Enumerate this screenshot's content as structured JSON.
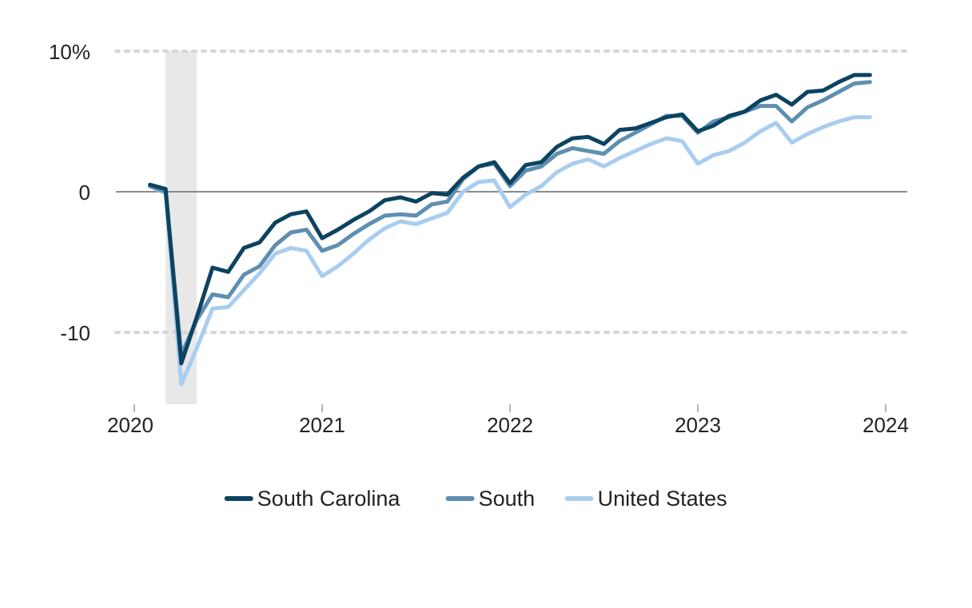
{
  "chart_data": {
    "type": "line",
    "title": "",
    "xlabel": "",
    "ylabel": "",
    "y_unit": "%",
    "ylim": [
      -15,
      10
    ],
    "xlim": [
      2020.0,
      2024.12
    ],
    "y_ticks": [
      {
        "value": 10,
        "label": "10%"
      },
      {
        "value": 0,
        "label": "0"
      },
      {
        "value": -10,
        "label": "-10"
      }
    ],
    "x_ticks": [
      {
        "value": 2020,
        "label": "2020"
      },
      {
        "value": 2021,
        "label": "2021"
      },
      {
        "value": 2022,
        "label": "2022"
      },
      {
        "value": 2023,
        "label": "2023"
      },
      {
        "value": 2024,
        "label": "2024"
      }
    ],
    "recession_band": {
      "start": 2020.167,
      "end": 2020.333,
      "color": "#e8e8e8"
    },
    "grid": "dotted at ±10, solid zero line",
    "legend_position": "bottom-center",
    "x": [
      "2020-02",
      "2020-03",
      "2020-04",
      "2020-05",
      "2020-06",
      "2020-07",
      "2020-08",
      "2020-09",
      "2020-10",
      "2020-11",
      "2020-12",
      "2021-01",
      "2021-02",
      "2021-03",
      "2021-04",
      "2021-05",
      "2021-06",
      "2021-07",
      "2021-08",
      "2021-09",
      "2021-10",
      "2021-11",
      "2021-12",
      "2022-01",
      "2022-02",
      "2022-03",
      "2022-04",
      "2022-05",
      "2022-06",
      "2022-07",
      "2022-08",
      "2022-09",
      "2022-10",
      "2022-11",
      "2022-12",
      "2023-01",
      "2023-02",
      "2023-03",
      "2023-04",
      "2023-05",
      "2023-06",
      "2023-07",
      "2023-08",
      "2023-09",
      "2023-10",
      "2023-11",
      "2023-12"
    ],
    "series": [
      {
        "name": "South Carolina",
        "color": "#0b4360",
        "values": [
          0.5,
          0.2,
          -12.2,
          -8.9,
          -5.4,
          -5.7,
          -4.0,
          -3.6,
          -2.2,
          -1.6,
          -1.4,
          -3.3,
          -2.7,
          -2.0,
          -1.4,
          -0.6,
          -0.4,
          -0.7,
          -0.1,
          -0.2,
          1.0,
          1.8,
          2.1,
          0.6,
          1.9,
          2.1,
          3.2,
          3.8,
          3.9,
          3.4,
          4.4,
          4.5,
          4.9,
          5.3,
          5.5,
          4.3,
          4.7,
          5.4,
          5.7,
          6.5,
          6.9,
          6.2,
          7.1,
          7.2,
          7.8,
          8.3,
          8.3
        ]
      },
      {
        "name": "South",
        "color": "#5e8fb1",
        "values": [
          0.4,
          0.0,
          -11.6,
          -9.1,
          -7.3,
          -7.5,
          -5.9,
          -5.3,
          -3.8,
          -2.9,
          -2.7,
          -4.2,
          -3.8,
          -3.0,
          -2.3,
          -1.7,
          -1.6,
          -1.7,
          -0.9,
          -0.7,
          0.9,
          1.8,
          2.0,
          0.4,
          1.5,
          1.8,
          2.7,
          3.1,
          2.9,
          2.7,
          3.6,
          4.2,
          4.8,
          5.4,
          5.4,
          4.2,
          5.0,
          5.3,
          5.7,
          6.1,
          6.1,
          5.0,
          6.0,
          6.5,
          7.1,
          7.7,
          7.8
        ]
      },
      {
        "name": "United States",
        "color": "#a8cdf0",
        "values": [
          0.4,
          -0.1,
          -13.7,
          -11.1,
          -8.3,
          -8.2,
          -7.0,
          -5.8,
          -4.4,
          -4.0,
          -4.2,
          -6.0,
          -5.3,
          -4.4,
          -3.4,
          -2.6,
          -2.1,
          -2.3,
          -1.9,
          -1.5,
          0.0,
          0.7,
          0.8,
          -1.1,
          -0.2,
          0.4,
          1.4,
          2.0,
          2.3,
          1.8,
          2.4,
          2.9,
          3.4,
          3.8,
          3.6,
          2.0,
          2.6,
          2.9,
          3.5,
          4.3,
          4.9,
          3.5,
          4.1,
          4.6,
          5.0,
          5.3,
          5.3
        ]
      }
    ]
  }
}
